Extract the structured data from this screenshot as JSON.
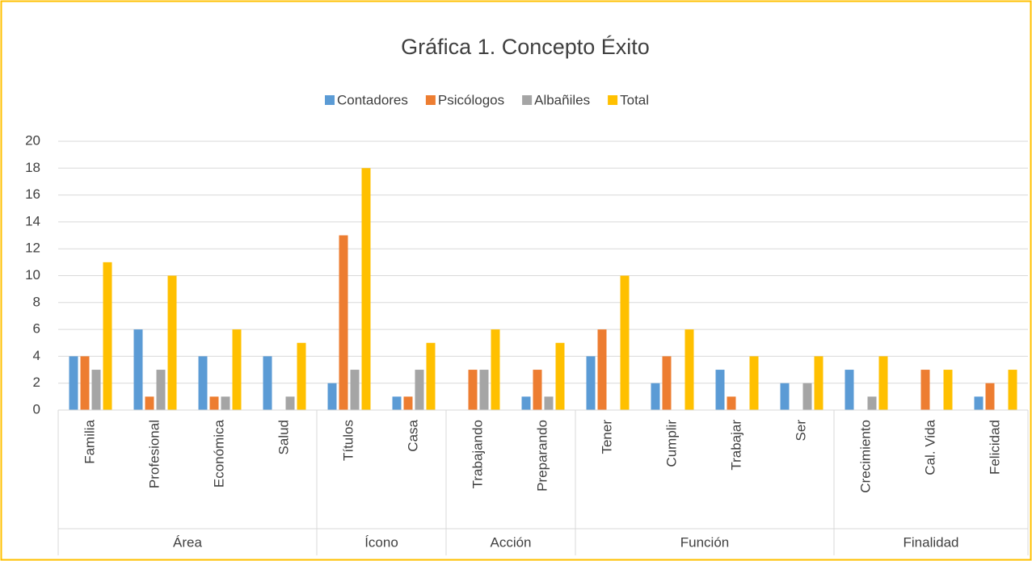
{
  "chart_data": {
    "type": "bar",
    "title": "Gráfica 1.  Concepto Éxito",
    "category_groups": [
      {
        "name": "Área",
        "categories": [
          "Familia",
          "Profesional",
          "Económica",
          "Salud"
        ]
      },
      {
        "name": "Ícono",
        "categories": [
          "Títulos",
          "Casa"
        ]
      },
      {
        "name": "Acción",
        "categories": [
          "Trabajando",
          "Preparando"
        ]
      },
      {
        "name": "Función",
        "categories": [
          "Tener",
          "Cumplir",
          "Trabajar",
          "Ser"
        ]
      },
      {
        "name": "Finalidad",
        "categories": [
          "Crecimiento",
          "Cal. Vida",
          "Felicidad"
        ]
      }
    ],
    "series": [
      {
        "name": "Contadores",
        "color": "#5b9bd5",
        "values": [
          4,
          6,
          4,
          4,
          2,
          1,
          0,
          1,
          4,
          2,
          3,
          2,
          3,
          0,
          1
        ]
      },
      {
        "name": "Psicólogos",
        "color": "#ed7d31",
        "values": [
          4,
          1,
          1,
          0,
          13,
          1,
          3,
          3,
          6,
          4,
          1,
          0,
          0,
          3,
          2
        ]
      },
      {
        "name": "Albañiles",
        "color": "#a5a5a5",
        "values": [
          3,
          3,
          1,
          1,
          3,
          3,
          3,
          1,
          0,
          0,
          0,
          2,
          1,
          0,
          0
        ]
      },
      {
        "name": "Total",
        "color": "#ffc000",
        "values": [
          11,
          10,
          6,
          5,
          18,
          5,
          6,
          5,
          10,
          6,
          4,
          4,
          4,
          3,
          3
        ]
      }
    ],
    "ylim": [
      0,
      20
    ],
    "yticks": [
      0,
      2,
      4,
      6,
      8,
      10,
      12,
      14,
      16,
      18,
      20
    ],
    "grid": true,
    "legend": "top"
  }
}
